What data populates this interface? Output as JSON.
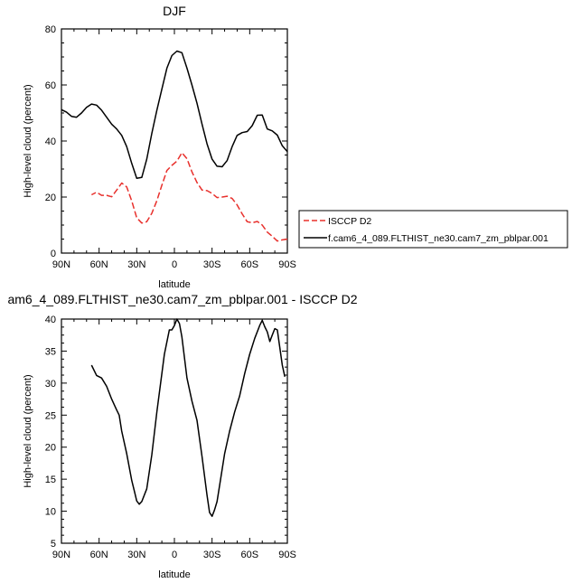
{
  "chart_data": [
    {
      "type": "line",
      "title": "DJF",
      "xlabel": "latitude",
      "ylabel": "High-level cloud (percent)",
      "xlim": [
        90,
        -90
      ],
      "ylim": [
        0,
        80
      ],
      "xticks": [
        90,
        60,
        30,
        0,
        -30,
        -60,
        -90
      ],
      "xtick_labels": [
        "90N",
        "60N",
        "30N",
        "0",
        "30S",
        "60S",
        "90S"
      ],
      "yticks": [
        0,
        20,
        40,
        60,
        80
      ],
      "ytick_labels": [
        "0",
        "20",
        "40",
        "60",
        "80"
      ],
      "legend_position": "right",
      "series": [
        {
          "name": "ISCCP D2",
          "color": "#e8302c",
          "dash": "dashed",
          "x": [
            -90,
            -86,
            -82,
            -78,
            -74,
            -70,
            -66,
            -62,
            -58,
            -54,
            -50,
            -46,
            -42,
            -38,
            -34,
            -30,
            -26,
            -22,
            -18,
            -14,
            -10,
            -6,
            -2,
            2,
            6,
            10,
            14,
            18,
            22,
            26,
            30,
            34,
            38,
            42,
            46,
            50,
            54,
            58,
            62,
            66
          ],
          "values": [
            5,
            4.7,
            4.3,
            6,
            7.5,
            10,
            11.3,
            10.8,
            11.2,
            14,
            17.2,
            19.5,
            20.3,
            20,
            19.8,
            21.3,
            22.3,
            22.5,
            25.2,
            29,
            33.7,
            35.8,
            32.8,
            31.3,
            29.5,
            24.2,
            18.7,
            14.2,
            11.2,
            10.7,
            12.6,
            18.6,
            23.6,
            25,
            22.5,
            20.1,
            20.6,
            20.6,
            21.7,
            20.8
          ]
        },
        {
          "name": "f.cam6_4_089.FLTHIST_ne30.cam7_zm_pblpar.001",
          "color": "#000000",
          "dash": "solid",
          "x": [
            -90,
            -86,
            -82,
            -78,
            -74,
            -70,
            -66,
            -62,
            -58,
            -54,
            -50,
            -46,
            -42,
            -38,
            -34,
            -30,
            -26,
            -22,
            -18,
            -14,
            -10,
            -6,
            -2,
            2,
            6,
            10,
            14,
            18,
            22,
            26,
            30,
            34,
            38,
            42,
            46,
            50,
            54,
            58,
            62,
            66,
            70,
            74,
            78,
            82,
            86,
            90
          ],
          "values": [
            36.2,
            38.3,
            42.1,
            43.6,
            44.3,
            49.3,
            49.2,
            45.5,
            43.4,
            43,
            42,
            38,
            33,
            30.8,
            31,
            33.5,
            39,
            46,
            53.5,
            60,
            66,
            71.5,
            72.1,
            70.5,
            66,
            58.5,
            51,
            42.7,
            33.5,
            27,
            26.7,
            32,
            38,
            42,
            44.3,
            46,
            48.5,
            51,
            52.8,
            53.2,
            52,
            50,
            48.5,
            48.8,
            50.3,
            51.2
          ]
        }
      ]
    },
    {
      "type": "line",
      "title": "am6_4_089.FLTHIST_ne30.cam7_zm_pblpar.001 - ISCCP D2",
      "xlabel": "latitude",
      "ylabel": "High-level cloud (percent)",
      "xlim": [
        90,
        -90
      ],
      "ylim": [
        5,
        40
      ],
      "xticks": [
        90,
        60,
        30,
        0,
        -30,
        -60,
        -90
      ],
      "xtick_labels": [
        "90N",
        "60N",
        "30N",
        "0",
        "30S",
        "60S",
        "90S"
      ],
      "yticks": [
        5,
        10,
        15,
        20,
        25,
        30,
        35,
        40
      ],
      "ytick_labels": [
        "5",
        "10",
        "15",
        "20",
        "25",
        "30",
        "35",
        "40"
      ],
      "series": [
        {
          "color": "#000000",
          "dash": "solid",
          "x": [
            -88,
            -86,
            -84,
            -82,
            -80,
            -78,
            -76,
            -74,
            -72,
            -70,
            -68,
            -64,
            -60,
            -56,
            -52,
            -48,
            -44,
            -40,
            -36,
            -34,
            -32,
            -30,
            -28,
            -26,
            -22,
            -18,
            -14,
            -10,
            -6,
            -4,
            -2,
            0,
            2,
            4,
            8,
            14,
            18,
            22,
            26,
            28,
            30,
            32,
            34,
            38,
            42,
            44,
            46,
            50,
            54,
            58,
            62,
            66
          ],
          "values": [
            31,
            32.8,
            35.5,
            38.3,
            38.5,
            37.5,
            36.5,
            38,
            38.8,
            39.8,
            39,
            37,
            34.5,
            31.5,
            28,
            25.5,
            22.5,
            19,
            14,
            11.5,
            10.2,
            9.2,
            9.8,
            12.5,
            18.5,
            24.2,
            27.2,
            30.8,
            37.2,
            39.3,
            40,
            39,
            38.3,
            38.3,
            34.5,
            25.5,
            18.8,
            13.5,
            11.5,
            11.1,
            11.6,
            13.2,
            14.8,
            19,
            22.5,
            25,
            25.8,
            27.5,
            29.5,
            30.8,
            31.2,
            32.8
          ]
        }
      ]
    }
  ]
}
